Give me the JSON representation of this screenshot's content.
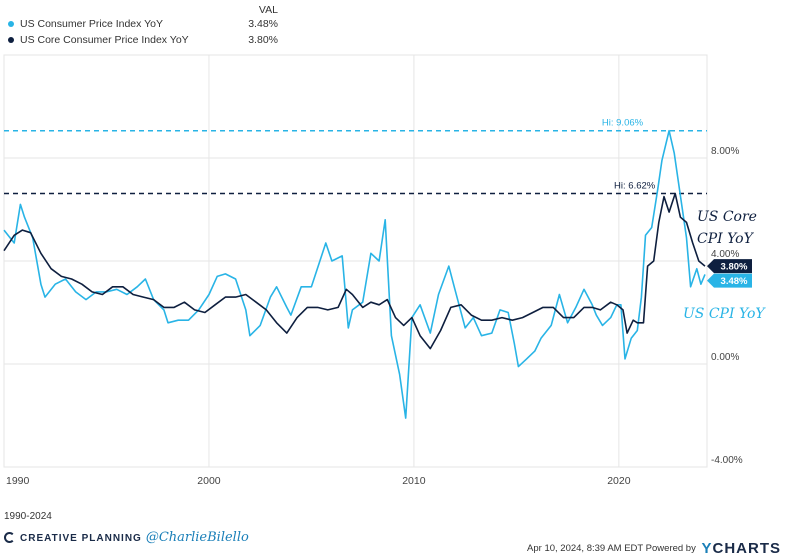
{
  "legend": {
    "value_header": "VAL",
    "items": [
      {
        "label": "US Consumer Price Index YoY",
        "value": "3.48%",
        "color": "#29b4e6"
      },
      {
        "label": "US Core Consumer Price Index YoY",
        "value": "3.80%",
        "color": "#0e1f3f"
      }
    ]
  },
  "annotations": {
    "hi_cpi": "Hi: 9.06%",
    "hi_core": "Hi: 6.62%",
    "core_label_line1": "US Core",
    "core_label_line2": "CPI YoY",
    "cpi_label": "US CPI YoY",
    "core_badge": "3.80%",
    "cpi_badge": "3.48%"
  },
  "footer": {
    "range": "1990-2024",
    "brand": "CREATIVE PLANNING",
    "handle": "@CharlieBilello",
    "timestamp": "Apr 10, 2024, 8:39 AM EDT Powered by",
    "ycharts": "CHARTS",
    "ycharts_y": "Y"
  },
  "chart_data": {
    "type": "line",
    "title": "",
    "xlabel": "",
    "ylabel": "",
    "xlim": [
      1990,
      2024.3
    ],
    "ylim": [
      -4,
      12
    ],
    "x_ticks": [
      1990,
      2000,
      2010,
      2020
    ],
    "y_ticks": [
      8,
      4,
      0,
      -4
    ],
    "y_tick_labels": [
      "8.00%",
      "4.00%",
      "0.00%",
      "-4.00%"
    ],
    "grid": true,
    "reference_lines": [
      {
        "value": 9.06,
        "label": "Hi: 9.06%",
        "color": "#29b4e6"
      },
      {
        "value": 6.62,
        "label": "Hi: 6.62%",
        "color": "#0e1f3f"
      }
    ],
    "series": [
      {
        "name": "US Consumer Price Index YoY",
        "color": "#29b4e6",
        "points": [
          [
            1990.0,
            5.2
          ],
          [
            1990.5,
            4.7
          ],
          [
            1990.8,
            6.2
          ],
          [
            1991.0,
            5.7
          ],
          [
            1991.4,
            4.9
          ],
          [
            1991.8,
            3.1
          ],
          [
            1992.0,
            2.6
          ],
          [
            1992.5,
            3.1
          ],
          [
            1993.0,
            3.3
          ],
          [
            1993.5,
            2.8
          ],
          [
            1994.0,
            2.5
          ],
          [
            1994.5,
            2.8
          ],
          [
            1995.0,
            2.8
          ],
          [
            1995.5,
            2.9
          ],
          [
            1996.0,
            2.7
          ],
          [
            1996.5,
            3.0
          ],
          [
            1996.9,
            3.3
          ],
          [
            1997.3,
            2.5
          ],
          [
            1997.8,
            2.1
          ],
          [
            1998.0,
            1.6
          ],
          [
            1998.5,
            1.7
          ],
          [
            1999.0,
            1.7
          ],
          [
            1999.5,
            2.1
          ],
          [
            2000.0,
            2.7
          ],
          [
            2000.4,
            3.4
          ],
          [
            2000.8,
            3.5
          ],
          [
            2001.3,
            3.3
          ],
          [
            2001.8,
            2.1
          ],
          [
            2002.0,
            1.1
          ],
          [
            2002.5,
            1.5
          ],
          [
            2003.0,
            2.6
          ],
          [
            2003.3,
            3.0
          ],
          [
            2003.8,
            2.2
          ],
          [
            2004.0,
            1.9
          ],
          [
            2004.5,
            3.0
          ],
          [
            2005.0,
            3.0
          ],
          [
            2005.7,
            4.7
          ],
          [
            2006.0,
            4.0
          ],
          [
            2006.5,
            4.2
          ],
          [
            2006.8,
            1.4
          ],
          [
            2007.0,
            2.1
          ],
          [
            2007.5,
            2.4
          ],
          [
            2007.9,
            4.3
          ],
          [
            2008.3,
            4.0
          ],
          [
            2008.6,
            5.6
          ],
          [
            2008.9,
            1.1
          ],
          [
            2009.3,
            -0.4
          ],
          [
            2009.6,
            -2.1
          ],
          [
            2009.9,
            1.8
          ],
          [
            2010.3,
            2.3
          ],
          [
            2010.8,
            1.2
          ],
          [
            2011.2,
            2.7
          ],
          [
            2011.7,
            3.8
          ],
          [
            2012.0,
            2.9
          ],
          [
            2012.5,
            1.4
          ],
          [
            2012.9,
            1.8
          ],
          [
            2013.3,
            1.1
          ],
          [
            2013.8,
            1.2
          ],
          [
            2014.2,
            2.1
          ],
          [
            2014.6,
            2.0
          ],
          [
            2014.9,
            0.8
          ],
          [
            2015.1,
            -0.1
          ],
          [
            2015.5,
            0.2
          ],
          [
            2015.9,
            0.5
          ],
          [
            2016.2,
            1.0
          ],
          [
            2016.7,
            1.5
          ],
          [
            2017.1,
            2.7
          ],
          [
            2017.5,
            1.6
          ],
          [
            2017.9,
            2.2
          ],
          [
            2018.3,
            2.9
          ],
          [
            2018.7,
            2.3
          ],
          [
            2018.9,
            1.9
          ],
          [
            2019.2,
            1.5
          ],
          [
            2019.6,
            1.8
          ],
          [
            2019.9,
            2.3
          ],
          [
            2020.1,
            2.3
          ],
          [
            2020.3,
            0.2
          ],
          [
            2020.6,
            1.0
          ],
          [
            2020.9,
            1.3
          ],
          [
            2021.1,
            2.6
          ],
          [
            2021.3,
            5.0
          ],
          [
            2021.6,
            5.3
          ],
          [
            2021.9,
            6.8
          ],
          [
            2022.1,
            7.9
          ],
          [
            2022.45,
            9.06
          ],
          [
            2022.7,
            8.2
          ],
          [
            2022.9,
            7.1
          ],
          [
            2023.1,
            6.0
          ],
          [
            2023.3,
            4.9
          ],
          [
            2023.5,
            3.0
          ],
          [
            2023.8,
            3.7
          ],
          [
            2024.0,
            3.1
          ],
          [
            2024.2,
            3.48
          ]
        ]
      },
      {
        "name": "US Core Consumer Price Index YoY",
        "color": "#0e1f3f",
        "points": [
          [
            1990.0,
            4.4
          ],
          [
            1990.5,
            5.0
          ],
          [
            1990.9,
            5.2
          ],
          [
            1991.3,
            5.1
          ],
          [
            1991.8,
            4.3
          ],
          [
            1992.3,
            3.7
          ],
          [
            1992.8,
            3.4
          ],
          [
            1993.3,
            3.3
          ],
          [
            1993.8,
            3.1
          ],
          [
            1994.3,
            2.8
          ],
          [
            1994.8,
            2.7
          ],
          [
            1995.3,
            3.0
          ],
          [
            1995.8,
            3.0
          ],
          [
            1996.3,
            2.7
          ],
          [
            1996.8,
            2.6
          ],
          [
            1997.3,
            2.5
          ],
          [
            1997.8,
            2.2
          ],
          [
            1998.3,
            2.2
          ],
          [
            1998.8,
            2.4
          ],
          [
            1999.3,
            2.1
          ],
          [
            1999.8,
            2.0
          ],
          [
            2000.3,
            2.3
          ],
          [
            2000.8,
            2.6
          ],
          [
            2001.3,
            2.6
          ],
          [
            2001.8,
            2.7
          ],
          [
            2002.3,
            2.4
          ],
          [
            2002.8,
            2.1
          ],
          [
            2003.3,
            1.6
          ],
          [
            2003.8,
            1.2
          ],
          [
            2004.3,
            1.8
          ],
          [
            2004.8,
            2.2
          ],
          [
            2005.3,
            2.2
          ],
          [
            2005.8,
            2.1
          ],
          [
            2006.3,
            2.2
          ],
          [
            2006.7,
            2.9
          ],
          [
            2007.0,
            2.7
          ],
          [
            2007.5,
            2.2
          ],
          [
            2007.9,
            2.4
          ],
          [
            2008.3,
            2.3
          ],
          [
            2008.7,
            2.5
          ],
          [
            2009.1,
            1.8
          ],
          [
            2009.5,
            1.5
          ],
          [
            2009.9,
            1.8
          ],
          [
            2010.3,
            1.1
          ],
          [
            2010.8,
            0.6
          ],
          [
            2011.3,
            1.3
          ],
          [
            2011.8,
            2.2
          ],
          [
            2012.3,
            2.3
          ],
          [
            2012.8,
            1.9
          ],
          [
            2013.3,
            1.7
          ],
          [
            2013.8,
            1.7
          ],
          [
            2014.3,
            1.8
          ],
          [
            2014.8,
            1.7
          ],
          [
            2015.3,
            1.8
          ],
          [
            2015.8,
            2.0
          ],
          [
            2016.3,
            2.2
          ],
          [
            2016.8,
            2.2
          ],
          [
            2017.3,
            1.8
          ],
          [
            2017.8,
            1.8
          ],
          [
            2018.3,
            2.2
          ],
          [
            2018.7,
            2.2
          ],
          [
            2019.1,
            2.1
          ],
          [
            2019.6,
            2.4
          ],
          [
            2019.9,
            2.3
          ],
          [
            2020.2,
            2.1
          ],
          [
            2020.4,
            1.2
          ],
          [
            2020.7,
            1.7
          ],
          [
            2020.9,
            1.6
          ],
          [
            2021.2,
            1.6
          ],
          [
            2021.4,
            3.8
          ],
          [
            2021.7,
            4.0
          ],
          [
            2021.95,
            5.5
          ],
          [
            2022.2,
            6.5
          ],
          [
            2022.45,
            5.9
          ],
          [
            2022.75,
            6.62
          ],
          [
            2023.0,
            5.7
          ],
          [
            2023.3,
            5.5
          ],
          [
            2023.6,
            4.7
          ],
          [
            2023.9,
            4.0
          ],
          [
            2024.2,
            3.8
          ]
        ]
      }
    ]
  }
}
